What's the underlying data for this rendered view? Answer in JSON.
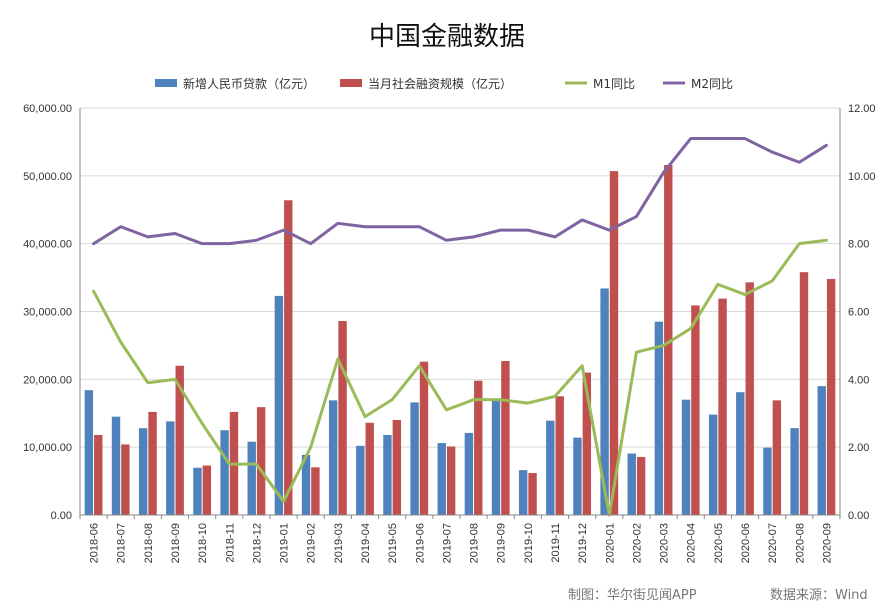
{
  "chart_data": {
    "type": "bar",
    "title": "中国金融数据",
    "categories": [
      "2018-06",
      "2018-07",
      "2018-08",
      "2018-09",
      "2018-10",
      "2018-11",
      "2018-12",
      "2019-01",
      "2019-02",
      "2019-03",
      "2019-04",
      "2019-05",
      "2019-06",
      "2019-07",
      "2019-08",
      "2019-09",
      "2019-10",
      "2019-11",
      "2019-12",
      "2020-01",
      "2020-02",
      "2020-03",
      "2020-04",
      "2020-05",
      "2020-06",
      "2020-07",
      "2020-08",
      "2020-09"
    ],
    "series": [
      {
        "name": "新增人民币贷款（亿元）",
        "type": "bar",
        "axis": "left",
        "color": "#4F81BD",
        "values": [
          18400,
          14500,
          12800,
          13800,
          6970,
          12500,
          10800,
          32300,
          8858,
          16900,
          10200,
          11800,
          16600,
          10600,
          12100,
          16900,
          6613,
          13900,
          11400,
          33400,
          9057,
          28500,
          17000,
          14800,
          18100,
          9927,
          12800,
          19000
        ]
      },
      {
        "name": "当月社会融资规模（亿元）",
        "type": "bar",
        "axis": "left",
        "color": "#C0504D",
        "values": [
          11800,
          10400,
          15200,
          22000,
          7288,
          15200,
          15900,
          46400,
          7030,
          28600,
          13600,
          14000,
          22600,
          10100,
          19800,
          22700,
          6189,
          17500,
          21000,
          50700,
          8554,
          51600,
          30900,
          31900,
          34300,
          16900,
          35800,
          34800
        ]
      },
      {
        "name": "M1同比",
        "type": "line",
        "axis": "right",
        "color": "#9BBB59",
        "values": [
          6.6,
          5.1,
          3.9,
          4.0,
          2.7,
          1.5,
          1.5,
          0.4,
          2.0,
          4.6,
          2.9,
          3.4,
          4.4,
          3.1,
          3.4,
          3.4,
          3.3,
          3.5,
          4.4,
          0.0,
          4.8,
          5.0,
          5.5,
          6.8,
          6.5,
          6.9,
          8.0,
          8.1
        ]
      },
      {
        "name": "M2同比",
        "type": "line",
        "axis": "right",
        "color": "#8064A2",
        "values": [
          8.0,
          8.5,
          8.2,
          8.3,
          8.0,
          8.0,
          8.1,
          8.4,
          8.0,
          8.6,
          8.5,
          8.5,
          8.5,
          8.1,
          8.2,
          8.4,
          8.4,
          8.2,
          8.7,
          8.4,
          8.8,
          10.1,
          11.1,
          11.1,
          11.1,
          10.7,
          10.4,
          10.9
        ]
      }
    ],
    "y_left": {
      "min": 0,
      "max": 60000,
      "step": 10000,
      "tick_labels": [
        "0.00",
        "10,000.00",
        "20,000.00",
        "30,000.00",
        "40,000.00",
        "50,000.00",
        "60,000.00"
      ]
    },
    "y_right": {
      "min": 0,
      "max": 12,
      "step": 2,
      "tick_labels": [
        "0.00",
        "2.00",
        "4.00",
        "6.00",
        "8.00",
        "10.00",
        "12.00"
      ]
    },
    "grid": "horizontal",
    "legend": "top"
  },
  "footer": {
    "credit": "制图：华尔街见闻APP",
    "source": "数据来源：Wind"
  }
}
